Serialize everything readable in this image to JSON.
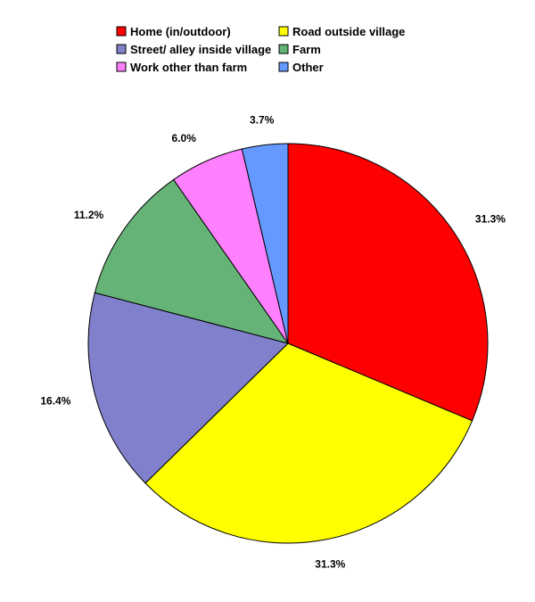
{
  "chart_data": {
    "type": "pie",
    "title": "",
    "slices": [
      {
        "name": "Home (in/outdoor)",
        "value": 31.3,
        "label": "31.3%",
        "color": "#ff0000"
      },
      {
        "name": "Road outside village",
        "value": 31.3,
        "label": "31.3%",
        "color": "#ffff00"
      },
      {
        "name": "Street/ alley inside village",
        "value": 16.4,
        "label": "16.4%",
        "color": "#8080cc"
      },
      {
        "name": "Farm",
        "value": 11.2,
        "label": "11.2%",
        "color": "#66b377"
      },
      {
        "name": "Work other than farm",
        "value": 6.0,
        "label": "6.0%",
        "color": "#ff80ff"
      },
      {
        "name": "Other",
        "value": 3.7,
        "label": "3.7%",
        "color": "#6699ff"
      }
    ],
    "start": "12 o'clock",
    "direction": "clockwise",
    "legend": {
      "placement": "top",
      "columns": 2
    }
  }
}
